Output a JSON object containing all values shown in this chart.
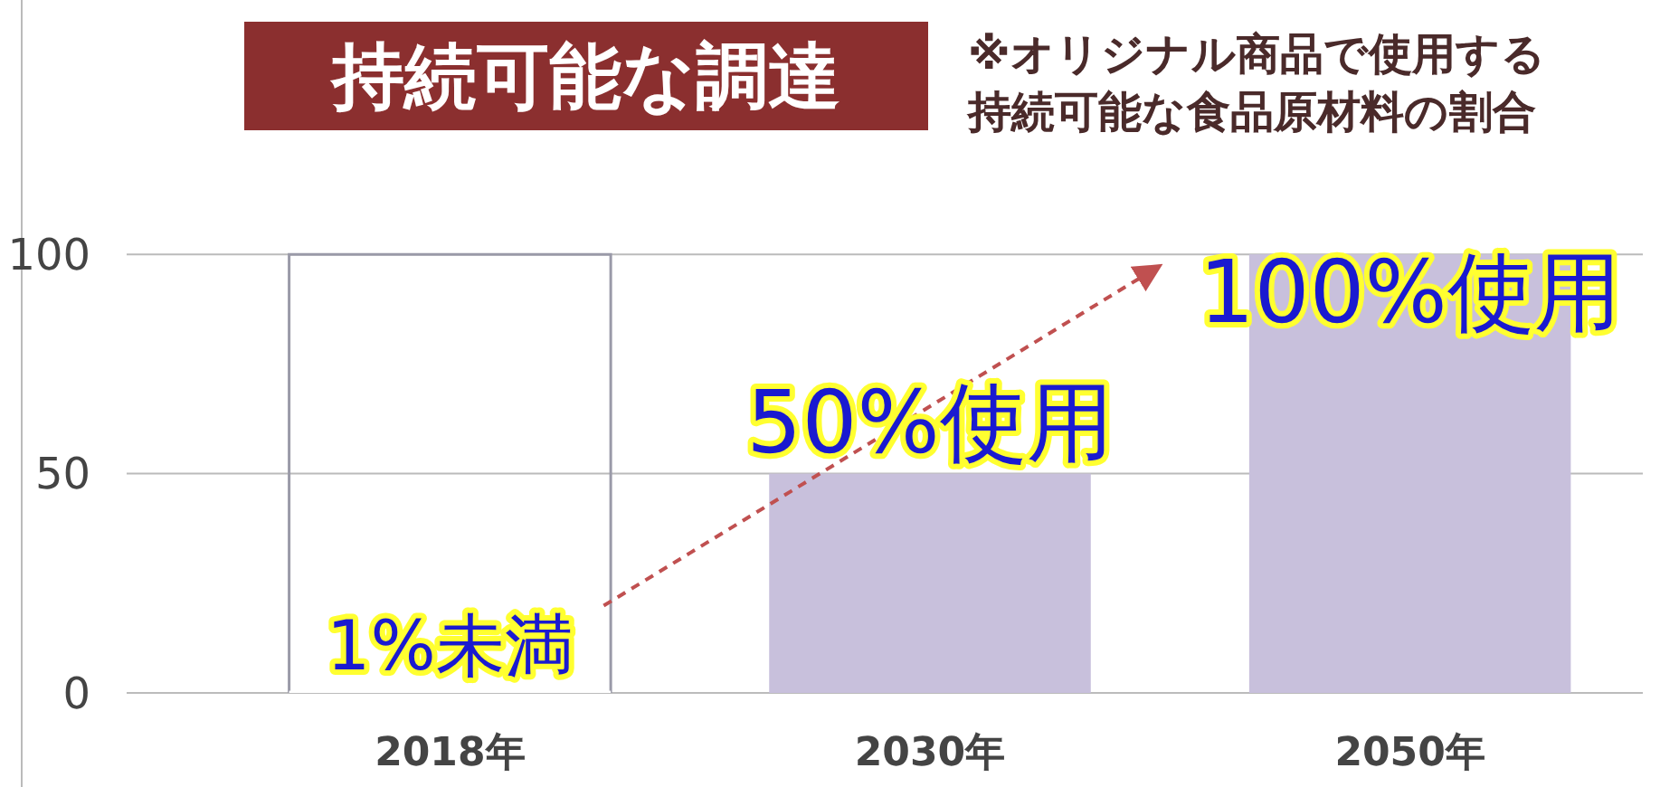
{
  "chart_data": {
    "type": "bar",
    "title": "持続可能な調達",
    "annotations": [
      "※オリジナル商品で使用する持続可能な食品原材料の割合"
    ],
    "categories": [
      "2018年",
      "2030年",
      "2050年"
    ],
    "values": [
      0.5,
      50,
      100
    ],
    "value_labels": [
      "1%未満",
      "50%使用",
      "100%使用"
    ],
    "colors": [
      "#ffffff",
      "#c8c0dc",
      "#c8c0dc"
    ],
    "ylim": [
      0,
      158
    ],
    "yticks": [
      0,
      50,
      100
    ],
    "grid": "y"
  }
}
